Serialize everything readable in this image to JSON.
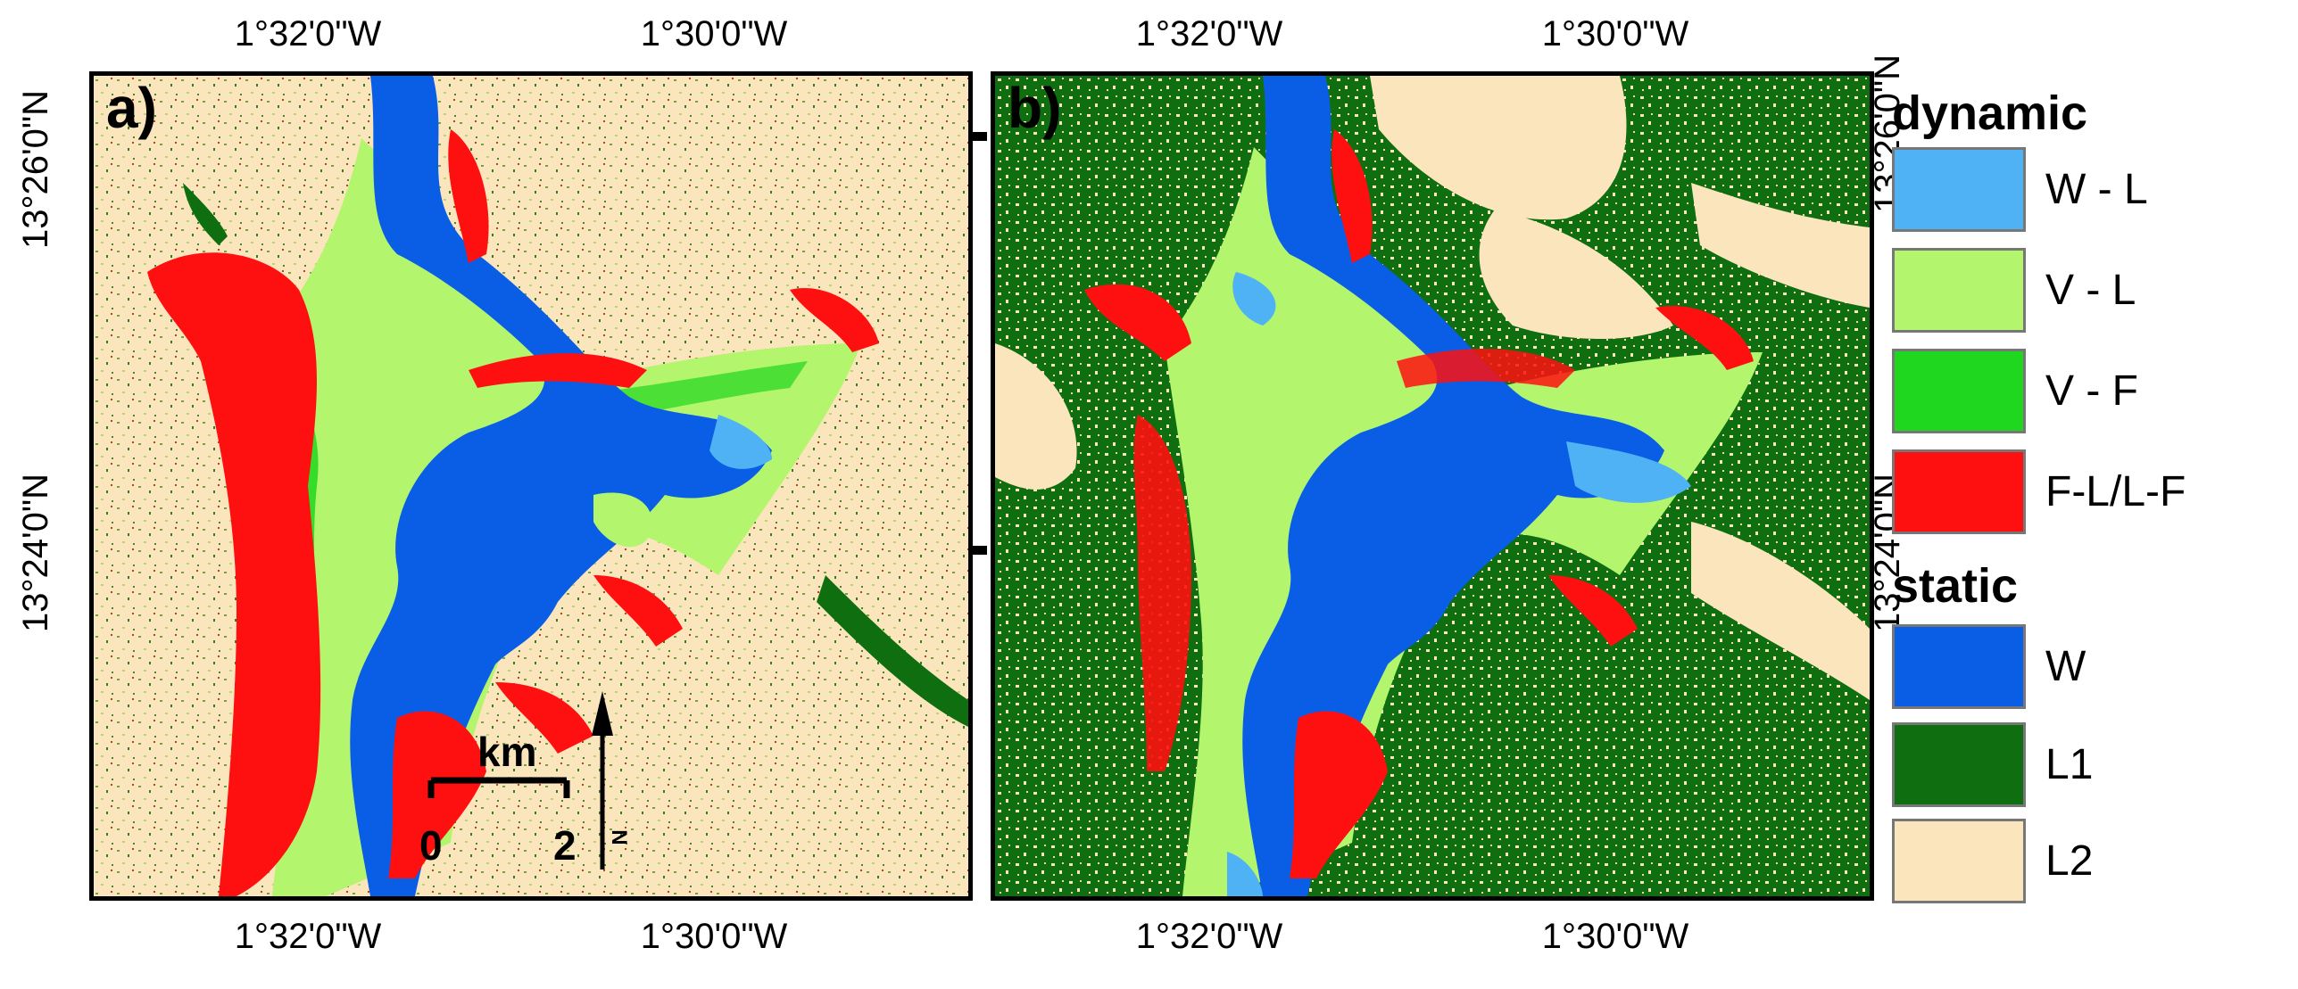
{
  "coordinates": {
    "lon_left": "1°32'0\"W",
    "lon_right": "1°30'0\"W",
    "lat_top": "13°26'0\"N",
    "lat_bottom": "13°24'0\"N"
  },
  "panels": {
    "a": {
      "label": "a)"
    },
    "b": {
      "label": "b)"
    }
  },
  "scale_bar": {
    "unit": "km",
    "start": "0",
    "end": "2"
  },
  "north_arrow": {
    "label": "N"
  },
  "legend": {
    "dynamic_heading": "dynamic",
    "static_heading": "static",
    "items": [
      {
        "label": "W - L",
        "color": "#4eb2f5"
      },
      {
        "label": "V - L",
        "color": "#b4f56e"
      },
      {
        "label": "V - F",
        "color": "#1fd71f"
      },
      {
        "label": "F-L/L-F",
        "color": "#ff1010"
      },
      {
        "label": "W",
        "color": "#0a5ee6"
      },
      {
        "label": "L1",
        "color": "#0e6e10"
      },
      {
        "label": "L2",
        "color": "#fbe5bd"
      }
    ]
  }
}
